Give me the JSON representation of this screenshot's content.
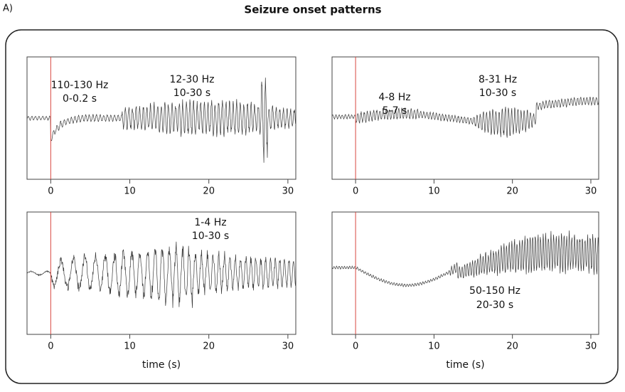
{
  "label": "A)",
  "title": "Seizure onset patterns",
  "chart_data": [
    {
      "type": "line",
      "xlim": [
        -3,
        31
      ],
      "xticks": [
        0,
        10,
        20,
        30
      ],
      "onset": 0,
      "onset_color": "#d9473f",
      "annotations": [
        "110-130 Hz",
        "0-0.2 s",
        "12-30 Hz",
        "10-30 s"
      ]
    },
    {
      "type": "line",
      "xlim": [
        -3,
        31
      ],
      "xticks": [
        0,
        10,
        20,
        30
      ],
      "onset": 0,
      "onset_color": "#d9473f",
      "annotations": [
        "4-8 Hz",
        "5-7 s",
        "8-31 Hz",
        "10-30 s"
      ]
    },
    {
      "type": "line",
      "xlim": [
        -3,
        31
      ],
      "xticks": [
        0,
        10,
        20,
        30
      ],
      "onset": 0,
      "onset_color": "#d9473f",
      "xlabel": "time (s)",
      "annotations": [
        "1-4 Hz",
        "10-30 s"
      ]
    },
    {
      "type": "line",
      "xlim": [
        -3,
        31
      ],
      "xticks": [
        0,
        10,
        20,
        30
      ],
      "onset": 0,
      "onset_color": "#d9473f",
      "xlabel": "time (s)",
      "annotations": [
        "50-150 Hz",
        "20-30 s"
      ]
    }
  ]
}
